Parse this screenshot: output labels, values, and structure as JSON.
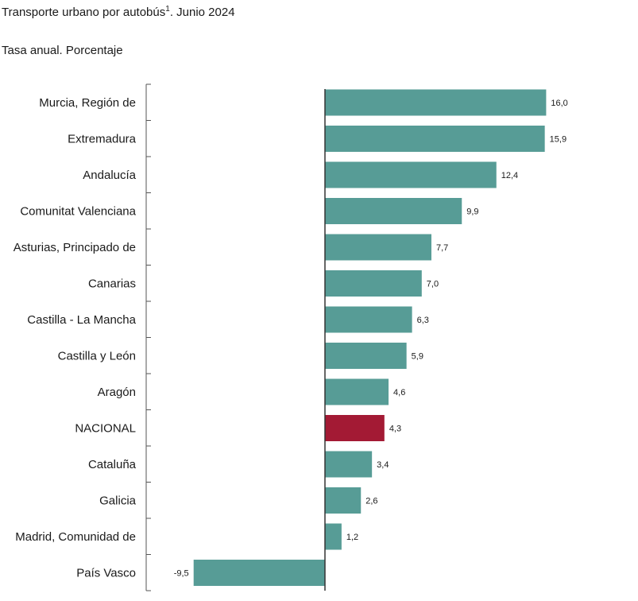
{
  "chart_data": {
    "type": "bar",
    "orientation": "horizontal",
    "title": "Transporte urbano por autobús",
    "title_superscript": "1",
    "title_suffix": ". Junio 2024",
    "subtitle": "Tasa anual. Porcentaje",
    "categories": [
      "Murcia, Región de",
      "Extremadura",
      "Andalucía",
      "Comunitat Valenciana",
      "Asturias, Principado de",
      "Canarias",
      "Castilla - La Mancha",
      "Castilla y León",
      "Aragón",
      "NACIONAL",
      "Cataluña",
      "Galicia",
      "Madrid, Comunidad de",
      "País Vasco"
    ],
    "values": [
      16.0,
      15.9,
      12.4,
      9.9,
      7.7,
      7.0,
      6.3,
      5.9,
      4.6,
      4.3,
      3.4,
      2.6,
      1.2,
      -9.5
    ],
    "value_labels": [
      "16,0",
      "15,9",
      "12,4",
      "9,9",
      "7,7",
      "7,0",
      "6,3",
      "5,9",
      "4,6",
      "4,3",
      "3,4",
      "2,6",
      "1,2",
      "-9,5"
    ],
    "highlight_category": "NACIONAL",
    "xlim": [
      -9.5,
      16.0
    ],
    "colors": {
      "bar": "#579c96",
      "highlight": "#a31a34",
      "axis": "#555555"
    }
  }
}
